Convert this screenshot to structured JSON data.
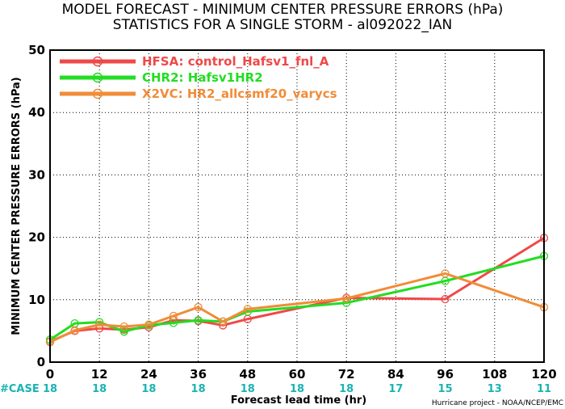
{
  "chart_data": {
    "type": "line",
    "title": "MODEL FORECAST - MINIMUM CENTER PRESSURE ERRORS (hPa)",
    "subtitle": "STATISTICS FOR A SINGLE STORM - al092022_IAN",
    "xlabel": "Forecast lead time (hr)",
    "ylabel": "MINIMUM CENTER PRESSURE ERRORS (hPa)",
    "xlim": [
      0,
      120
    ],
    "ylim": [
      0,
      50
    ],
    "xticks": [
      0,
      12,
      24,
      36,
      48,
      60,
      72,
      84,
      96,
      108,
      120
    ],
    "yticks": [
      0,
      10,
      20,
      30,
      40,
      50
    ],
    "legend_position": "top-left",
    "series": [
      {
        "name": "HFSA: control_Hafsv1_fnl_A",
        "color": "#f04848",
        "points": [
          [
            0,
            3.3
          ],
          [
            6,
            5.0
          ],
          [
            12,
            5.4
          ],
          [
            18,
            5.2
          ],
          [
            24,
            5.6
          ],
          [
            30,
            6.7
          ],
          [
            36,
            6.6
          ],
          [
            42,
            5.9
          ],
          [
            48,
            6.9
          ],
          [
            72,
            10.3
          ],
          [
            96,
            10.1
          ],
          [
            120,
            19.9
          ]
        ]
      },
      {
        "name": "CHR2: Hafsv1HR2",
        "color": "#22dd22",
        "points": [
          [
            0,
            3.6
          ],
          [
            6,
            6.2
          ],
          [
            12,
            6.4
          ],
          [
            18,
            4.9
          ],
          [
            24,
            5.9
          ],
          [
            30,
            6.3
          ],
          [
            36,
            6.7
          ],
          [
            42,
            6.5
          ],
          [
            48,
            8.1
          ],
          [
            72,
            9.5
          ],
          [
            96,
            13.0
          ],
          [
            120,
            17.0
          ]
        ]
      },
      {
        "name": "X2VC: HR2_allcsmf20_varycs",
        "color": "#f08c38",
        "points": [
          [
            0,
            3.2
          ],
          [
            6,
            5.1
          ],
          [
            12,
            6.0
          ],
          [
            18,
            5.7
          ],
          [
            24,
            6.0
          ],
          [
            30,
            7.4
          ],
          [
            36,
            8.8
          ],
          [
            42,
            6.5
          ],
          [
            48,
            8.5
          ],
          [
            72,
            10.2
          ],
          [
            96,
            14.2
          ],
          [
            120,
            8.8
          ]
        ]
      }
    ],
    "case_label": "#CASE",
    "cases": [
      {
        "x": 0,
        "n": "18"
      },
      {
        "x": 12,
        "n": "18"
      },
      {
        "x": 24,
        "n": "18"
      },
      {
        "x": 36,
        "n": "18"
      },
      {
        "x": 48,
        "n": "18"
      },
      {
        "x": 60,
        "n": "18"
      },
      {
        "x": 72,
        "n": "18"
      },
      {
        "x": 84,
        "n": "17"
      },
      {
        "x": 96,
        "n": "15"
      },
      {
        "x": 108,
        "n": "13"
      },
      {
        "x": 120,
        "n": "11"
      }
    ]
  },
  "credit": "Hurricane project - NOAA/NCEP/EMC"
}
